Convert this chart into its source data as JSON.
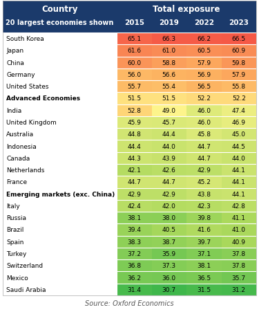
{
  "title_line1": "Country",
  "title_line2": "20 largest economies shown",
  "col_header": "Total exposure",
  "years": [
    "2015",
    "2019",
    "2022",
    "2023"
  ],
  "rows": [
    {
      "country": "South Korea",
      "bold": false,
      "values": [
        65.1,
        66.3,
        66.2,
        66.5
      ]
    },
    {
      "country": "Japan",
      "bold": false,
      "values": [
        61.6,
        61.0,
        60.5,
        60.9
      ]
    },
    {
      "country": "China",
      "bold": false,
      "values": [
        60.0,
        58.8,
        57.9,
        59.8
      ]
    },
    {
      "country": "Germany",
      "bold": false,
      "values": [
        56.0,
        56.6,
        56.9,
        57.9
      ]
    },
    {
      "country": "United States",
      "bold": false,
      "values": [
        55.7,
        55.4,
        56.5,
        55.8
      ]
    },
    {
      "country": "Advanced Economies",
      "bold": true,
      "values": [
        51.5,
        51.5,
        52.2,
        52.2
      ]
    },
    {
      "country": "India",
      "bold": false,
      "values": [
        52.8,
        49.0,
        46.0,
        47.4
      ]
    },
    {
      "country": "United Kingdom",
      "bold": false,
      "values": [
        45.9,
        45.7,
        46.0,
        46.9
      ]
    },
    {
      "country": "Australia",
      "bold": false,
      "values": [
        44.8,
        44.4,
        45.8,
        45.0
      ]
    },
    {
      "country": "Indonesia",
      "bold": false,
      "values": [
        44.4,
        44.0,
        44.7,
        44.5
      ]
    },
    {
      "country": "Canada",
      "bold": false,
      "values": [
        44.3,
        43.9,
        44.7,
        44.0
      ]
    },
    {
      "country": "Netherlands",
      "bold": false,
      "values": [
        42.1,
        42.6,
        42.9,
        44.1
      ]
    },
    {
      "country": "France",
      "bold": false,
      "values": [
        44.7,
        44.7,
        45.2,
        44.1
      ]
    },
    {
      "country": "Emerging markets (exc. China)",
      "bold": true,
      "values": [
        42.9,
        42.9,
        43.8,
        44.1
      ]
    },
    {
      "country": "Italy",
      "bold": false,
      "values": [
        42.4,
        42.0,
        42.3,
        42.8
      ]
    },
    {
      "country": "Russia",
      "bold": false,
      "values": [
        38.1,
        38.0,
        39.8,
        41.1
      ]
    },
    {
      "country": "Brazil",
      "bold": false,
      "values": [
        39.4,
        40.5,
        41.6,
        41.0
      ]
    },
    {
      "country": "Spain",
      "bold": false,
      "values": [
        38.3,
        38.7,
        39.7,
        40.9
      ]
    },
    {
      "country": "Turkey",
      "bold": false,
      "values": [
        37.2,
        35.9,
        37.1,
        37.8
      ]
    },
    {
      "country": "Switzerland",
      "bold": false,
      "values": [
        36.8,
        37.3,
        38.1,
        37.8
      ]
    },
    {
      "country": "Mexico",
      "bold": false,
      "values": [
        36.2,
        36.0,
        36.5,
        35.7
      ]
    },
    {
      "country": "Saudi Arabia",
      "bold": false,
      "values": [
        31.4,
        30.7,
        31.5,
        31.2
      ]
    }
  ],
  "header_bg": "#1b3a6b",
  "header_text": "#ffffff",
  "source_text": "Source: Oxford Economics",
  "val_min": 30.0,
  "val_max": 67.0,
  "color_stops": [
    [
      0.0,
      [
        0.22,
        0.71,
        0.29
      ]
    ],
    [
      0.3,
      [
        0.67,
        0.85,
        0.36
      ]
    ],
    [
      0.52,
      [
        1.0,
        0.96,
        0.55
      ]
    ],
    [
      0.72,
      [
        0.99,
        0.7,
        0.38
      ]
    ],
    [
      1.0,
      [
        0.96,
        0.33,
        0.27
      ]
    ]
  ]
}
